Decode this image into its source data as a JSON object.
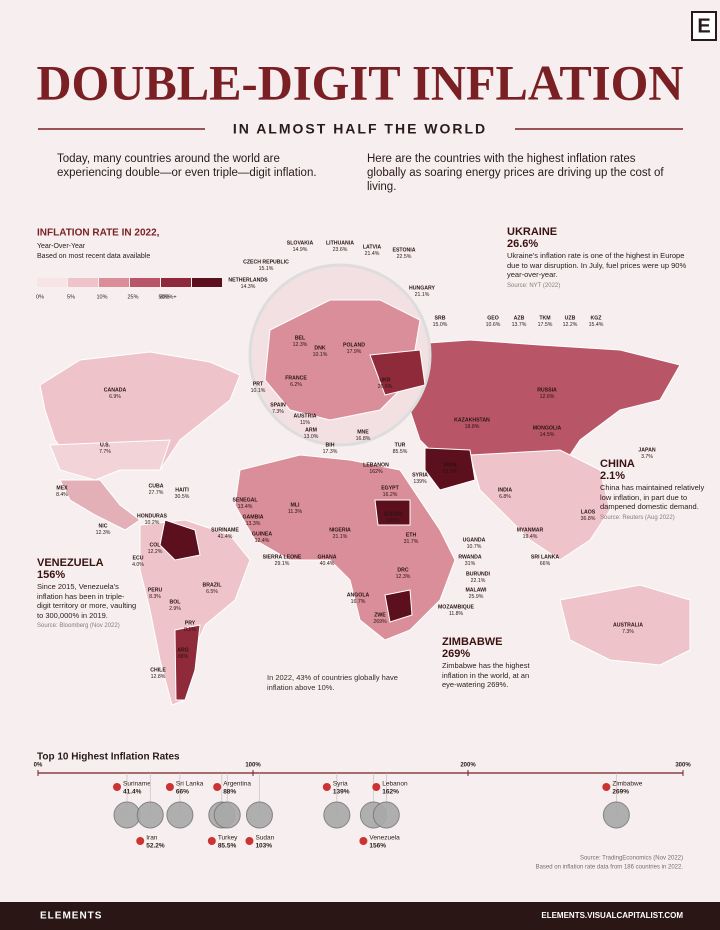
{
  "header": {
    "logo": "E",
    "title": "DOUBLE-DIGIT INFLATION",
    "subtitle": "IN ALMOST HALF THE WORLD",
    "intro_left": "Today, many countries around the world are experiencing double—or even triple—digit inflation.",
    "intro_right": "Here are the countries with the highest inflation rates globally as soaring energy prices are driving up the cost of living."
  },
  "legend": {
    "title": "INFLATION RATE IN 2022,",
    "subtitle": "Year-Over-Year",
    "note": "Based on most recent data available",
    "bins": [
      "0%",
      "5%",
      "10%",
      "25%",
      "50%",
      "200%+"
    ],
    "colors": [
      "#f7e4e6",
      "#eec4ca",
      "#d98e99",
      "#b85566",
      "#8e2a3a",
      "#5c0f1c"
    ]
  },
  "callouts": [
    {
      "name": "UKRAINE",
      "value": "26.6%",
      "text": "Ukraine's inflation rate is one of the highest in Europe due to war disruption. In July, fuel prices were up 90% year-over-year.",
      "source": "Source: NYT (2022)"
    },
    {
      "name": "CHINA",
      "value": "2.1%",
      "text": "China has maintained relatively low inflation, in part due to dampened domestic demand.",
      "source": "Source: Reuters (Aug 2022)"
    },
    {
      "name": "VENEZUELA",
      "value": "156%",
      "text": "Since 2015, Venezuela's inflation has been in triple-digit territory or more, vaulting to 300,000% in 2019.",
      "source": "Source: Bloomberg (Nov 2022)"
    },
    {
      "name": "ZIMBABWE",
      "value": "269%",
      "text": "Zimbabwe has the highest inflation in the world, at an eye-watering 269%."
    }
  ],
  "note": "In 2022, 43% of countries globally have inflation above 10%.",
  "map_labels": [
    {
      "name": "SLOVAKIA",
      "value": "14.9%"
    },
    {
      "name": "LITHUANIA",
      "value": "23.6%"
    },
    {
      "name": "LATVIA",
      "value": "21.4%"
    },
    {
      "name": "ESTONIA",
      "value": "22.5%"
    },
    {
      "name": "CZECH REPUBLIC",
      "value": "15.1%"
    },
    {
      "name": "NETHERLANDS",
      "value": "14.3%"
    },
    {
      "name": "HUNGARY",
      "value": "21.1%"
    },
    {
      "name": "SRB",
      "value": "15.0%"
    },
    {
      "name": "GEO",
      "value": "10.6%"
    },
    {
      "name": "AZB",
      "value": "13.7%"
    },
    {
      "name": "TKM",
      "value": "17.5%"
    },
    {
      "name": "UZB",
      "value": "12.2%"
    },
    {
      "name": "KGZ",
      "value": "15.4%"
    },
    {
      "name": "BEL",
      "value": "12.3%"
    },
    {
      "name": "DNK",
      "value": "10.1%"
    },
    {
      "name": "PRT",
      "value": "10.1%"
    },
    {
      "name": "FRANCE",
      "value": "6.2%"
    },
    {
      "name": "SPAIN",
      "value": "7.3%"
    },
    {
      "name": "AUSTRIA",
      "value": "11%"
    },
    {
      "name": "ARM",
      "value": "13.0%"
    },
    {
      "name": "BIH",
      "value": "17.3%"
    },
    {
      "name": "MNE",
      "value": "16.8%"
    },
    {
      "name": "POLAND",
      "value": "17.9%"
    },
    {
      "name": "UKR",
      "value": "26.6%"
    },
    {
      "name": "CANADA",
      "value": "6.9%"
    },
    {
      "name": "U.S.",
      "value": "7.7%"
    },
    {
      "name": "MEX",
      "value": "8.4%"
    },
    {
      "name": "CUBA",
      "value": "27.7%"
    },
    {
      "name": "HAITI",
      "value": "30.5%"
    },
    {
      "name": "HONDURAS",
      "value": "10.2%"
    },
    {
      "name": "NIC",
      "value": "12.3%"
    },
    {
      "name": "SURINAME",
      "value": "41.4%"
    },
    {
      "name": "ECU",
      "value": "4.0%"
    },
    {
      "name": "COL",
      "value": "12.2%"
    },
    {
      "name": "PERU",
      "value": "8.3%"
    },
    {
      "name": "BOL",
      "value": "2.9%"
    },
    {
      "name": "BRAZIL",
      "value": "6.5%"
    },
    {
      "name": "PRY",
      "value": "8.1%"
    },
    {
      "name": "ARG",
      "value": "88%"
    },
    {
      "name": "CHILE",
      "value": "12.8%"
    },
    {
      "name": "SENEGAL",
      "value": "13.4%"
    },
    {
      "name": "GAMBIA",
      "value": "13.3%"
    },
    {
      "name": "GUINEA",
      "value": "12.4%"
    },
    {
      "name": "SIERRA LEONE",
      "value": "29.1%"
    },
    {
      "name": "MLI",
      "value": "11.3%"
    },
    {
      "name": "GHANA",
      "value": "40.4%"
    },
    {
      "name": "NIGERIA",
      "value": "21.1%"
    },
    {
      "name": "EGYPT",
      "value": "16.2%"
    },
    {
      "name": "SUDAN",
      "value": "103%"
    },
    {
      "name": "ETH",
      "value": "31.7%"
    },
    {
      "name": "LEBANON",
      "value": "162%"
    },
    {
      "name": "SYRIA",
      "value": "139%"
    },
    {
      "name": "TUR",
      "value": "85.5%"
    },
    {
      "name": "IRAN",
      "value": "52.2%"
    },
    {
      "name": "KAZAKHSTAN",
      "value": "18.8%"
    },
    {
      "name": "RUSSIA",
      "value": "12.6%"
    },
    {
      "name": "MONGOLIA",
      "value": "14.5%"
    },
    {
      "name": "INDIA",
      "value": "6.8%"
    },
    {
      "name": "JAPAN",
      "value": "3.7%"
    },
    {
      "name": "LAOS",
      "value": "36.8%"
    },
    {
      "name": "MYANMAR",
      "value": "19.4%"
    },
    {
      "name": "SRI LANKA",
      "value": "66%"
    },
    {
      "name": "UGANDA",
      "value": "10.7%"
    },
    {
      "name": "RWANDA",
      "value": "31%"
    },
    {
      "name": "BURUNDI",
      "value": "22.1%"
    },
    {
      "name": "MALAWI",
      "value": "25.9%"
    },
    {
      "name": "MOZAMBIQUE",
      "value": "11.8%"
    },
    {
      "name": "DRC",
      "value": "12.3%"
    },
    {
      "name": "ANGOLA",
      "value": "16.7%"
    },
    {
      "name": "AUSTRALIA",
      "value": "7.3%"
    },
    {
      "name": "ZWE",
      "value": "269%"
    }
  ],
  "chart_data": {
    "type": "dot",
    "title": "Top 10 Highest Inflation Rates",
    "categories": [
      "Suriname",
      "Iran",
      "Sri Lanka",
      "Turkey",
      "Argentina",
      "Sudan",
      "Syria",
      "Venezuela",
      "Lebanon",
      "Zimbabwe"
    ],
    "values": [
      41.4,
      52.2,
      66,
      85.5,
      88,
      103,
      139,
      156,
      162,
      269
    ],
    "value_labels": [
      "41.4%",
      "52.2%",
      "66%",
      "85.5%",
      "88%",
      "103%",
      "139%",
      "156%",
      "162%",
      "269%"
    ],
    "xlim": [
      0,
      300
    ],
    "xticks": [
      {
        "value": 0,
        "label": "0%"
      },
      {
        "value": 100,
        "label": "100%"
      },
      {
        "value": 200,
        "label": "200%"
      },
      {
        "value": 300,
        "label": "300%"
      }
    ],
    "color": "#a9a9a9",
    "sources": [
      "Source: TradingEconomics (Nov 2022)",
      "Based on inflation rate data from 186 countries in 2022."
    ]
  },
  "footer": {
    "brand": "ELEMENTS",
    "url": "ELEMENTS.VISUALCAPITALIST.COM"
  }
}
